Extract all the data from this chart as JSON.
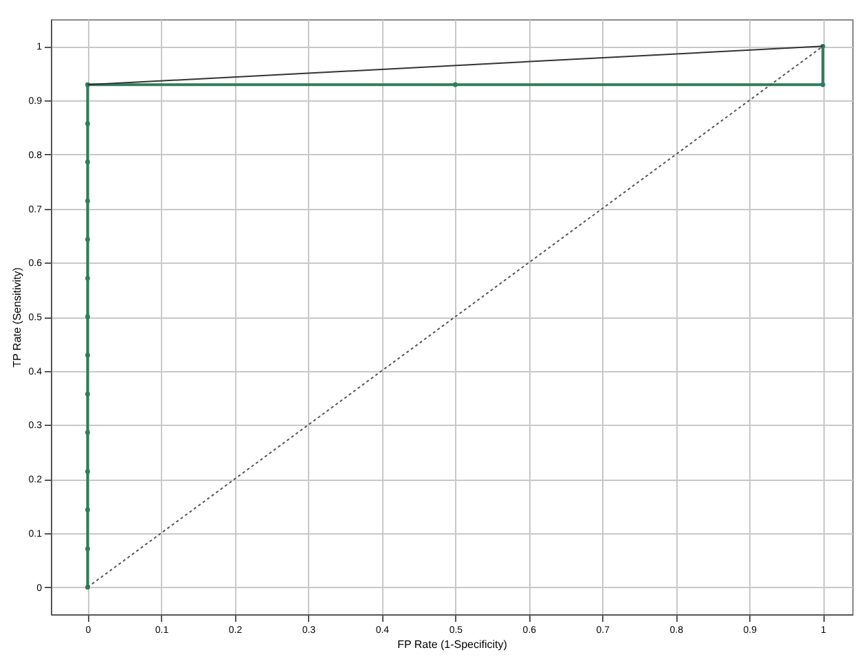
{
  "chart_data": {
    "type": "line",
    "xlabel": "FP Rate (1-Specificity)",
    "ylabel": "TP Rate (Sensitivity)",
    "xlim": [
      -0.05,
      1.04
    ],
    "ylim": [
      -0.05,
      1.05
    ],
    "xticks": [
      0,
      0.1,
      0.2,
      0.3,
      0.4,
      0.5,
      0.6,
      0.7,
      0.8,
      0.9,
      1
    ],
    "yticks": [
      0,
      0.1,
      0.2,
      0.3,
      0.4,
      0.5,
      0.6,
      0.7,
      0.8,
      0.9,
      1
    ],
    "grid": true,
    "series": [
      {
        "color": "#2e7d5b",
        "marker": "circle",
        "line_style": "solid",
        "x": [
          0,
          0,
          0,
          0,
          0,
          0,
          0,
          0,
          0,
          0,
          0,
          0,
          0,
          0,
          0.5,
          1,
          1
        ],
        "values": [
          0,
          0.071,
          0.143,
          0.214,
          0.286,
          0.357,
          0.429,
          0.5,
          0.571,
          0.643,
          0.714,
          0.786,
          0.857,
          0.929,
          0.929,
          0.929,
          1
        ]
      },
      {
        "color": "#333333",
        "marker": "none",
        "line_style": "solid",
        "x": [
          0,
          1
        ],
        "values": [
          0.929,
          1
        ]
      },
      {
        "color": "#555555",
        "marker": "none",
        "line_style": "dotted",
        "x": [
          0,
          1
        ],
        "values": [
          0,
          1
        ]
      }
    ]
  }
}
